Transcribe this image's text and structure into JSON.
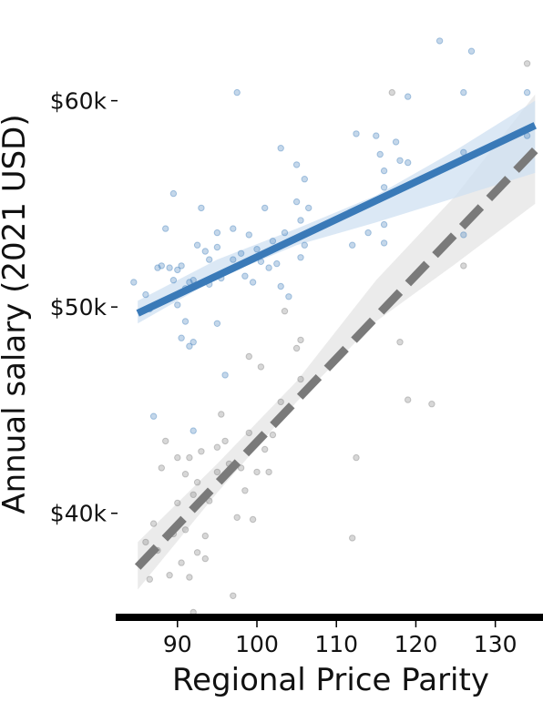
{
  "chart_data": {
    "type": "scatter",
    "title": "",
    "xlabel": "Regional Price Parity",
    "ylabel": "Annual salary (2021 USD)",
    "xlim": [
      82,
      136
    ],
    "ylim": [
      35000,
      64000
    ],
    "x_ticks": [
      90,
      100,
      110,
      120,
      130
    ],
    "x_tick_labels": [
      "90",
      "100",
      "110",
      "120",
      "130"
    ],
    "y_ticks": [
      40000,
      50000,
      60000
    ],
    "y_tick_labels": [
      "$40k",
      "$50k",
      "$60k"
    ],
    "grid": false,
    "legend": "none",
    "series": [
      {
        "color": "#3a7ab8",
        "line_style": "solid",
        "trend_line": {
          "x": [
            85,
            135
          ],
          "y": [
            49700,
            58800
          ]
        },
        "ci_band": {
          "x": [
            85,
            95,
            105,
            115,
            125,
            135
          ],
          "lower": [
            49200,
            51400,
            53000,
            54100,
            55300,
            56500
          ],
          "upper": [
            50300,
            52300,
            53800,
            55400,
            57600,
            60000
          ]
        },
        "points": [
          {
            "x": 84.5,
            "y": 51200
          },
          {
            "x": 86,
            "y": 50600
          },
          {
            "x": 86.5,
            "y": 49900
          },
          {
            "x": 87,
            "y": 44700
          },
          {
            "x": 87.5,
            "y": 51900
          },
          {
            "x": 88,
            "y": 52000
          },
          {
            "x": 88.5,
            "y": 53800
          },
          {
            "x": 89,
            "y": 51900
          },
          {
            "x": 89.5,
            "y": 55500
          },
          {
            "x": 89.5,
            "y": 51300
          },
          {
            "x": 90,
            "y": 50100
          },
          {
            "x": 90,
            "y": 51800
          },
          {
            "x": 90.5,
            "y": 52000
          },
          {
            "x": 90.5,
            "y": 48500
          },
          {
            "x": 91,
            "y": 50900
          },
          {
            "x": 91,
            "y": 49300
          },
          {
            "x": 91.5,
            "y": 51200
          },
          {
            "x": 91.5,
            "y": 48100
          },
          {
            "x": 92,
            "y": 51300
          },
          {
            "x": 92,
            "y": 44000
          },
          {
            "x": 92,
            "y": 48300
          },
          {
            "x": 92.5,
            "y": 53000
          },
          {
            "x": 93,
            "y": 54800
          },
          {
            "x": 93.5,
            "y": 52700
          },
          {
            "x": 94,
            "y": 52300
          },
          {
            "x": 94,
            "y": 51100
          },
          {
            "x": 95,
            "y": 53600
          },
          {
            "x": 95,
            "y": 52900
          },
          {
            "x": 95,
            "y": 49200
          },
          {
            "x": 95.5,
            "y": 51400
          },
          {
            "x": 96,
            "y": 46700
          },
          {
            "x": 96.5,
            "y": 51800
          },
          {
            "x": 97,
            "y": 53800
          },
          {
            "x": 97,
            "y": 52300
          },
          {
            "x": 97.5,
            "y": 60400
          },
          {
            "x": 98,
            "y": 52600
          },
          {
            "x": 98.5,
            "y": 51500
          },
          {
            "x": 99,
            "y": 53500
          },
          {
            "x": 99.5,
            "y": 51200
          },
          {
            "x": 100,
            "y": 52800
          },
          {
            "x": 100.5,
            "y": 52200
          },
          {
            "x": 101,
            "y": 54800
          },
          {
            "x": 101.5,
            "y": 51900
          },
          {
            "x": 102,
            "y": 53200
          },
          {
            "x": 102.5,
            "y": 52100
          },
          {
            "x": 103,
            "y": 57700
          },
          {
            "x": 103,
            "y": 51000
          },
          {
            "x": 103.5,
            "y": 53600
          },
          {
            "x": 104,
            "y": 50500
          },
          {
            "x": 105,
            "y": 56900
          },
          {
            "x": 105,
            "y": 55100
          },
          {
            "x": 105.5,
            "y": 54200
          },
          {
            "x": 105.5,
            "y": 52400
          },
          {
            "x": 106,
            "y": 56200
          },
          {
            "x": 106,
            "y": 53000
          },
          {
            "x": 106.5,
            "y": 54800
          },
          {
            "x": 112,
            "y": 53000
          },
          {
            "x": 112.5,
            "y": 58400
          },
          {
            "x": 114,
            "y": 53600
          },
          {
            "x": 115,
            "y": 58300
          },
          {
            "x": 115.5,
            "y": 57400
          },
          {
            "x": 116,
            "y": 56600
          },
          {
            "x": 116,
            "y": 55800
          },
          {
            "x": 116,
            "y": 54000
          },
          {
            "x": 116,
            "y": 53100
          },
          {
            "x": 117.5,
            "y": 58000
          },
          {
            "x": 118,
            "y": 57100
          },
          {
            "x": 119,
            "y": 57000
          },
          {
            "x": 119,
            "y": 60200
          },
          {
            "x": 123,
            "y": 62900
          },
          {
            "x": 126,
            "y": 60400
          },
          {
            "x": 126,
            "y": 57500
          },
          {
            "x": 126,
            "y": 53500
          },
          {
            "x": 127,
            "y": 62400
          },
          {
            "x": 134,
            "y": 60400
          },
          {
            "x": 134,
            "y": 58300
          }
        ]
      },
      {
        "color": "#7a7a7a",
        "line_style": "dashed",
        "trend_line": {
          "x": [
            85,
            135
          ],
          "y": [
            37400,
            57600
          ]
        },
        "ci_band": {
          "x": [
            85,
            95,
            105,
            115,
            125,
            135
          ],
          "lower": [
            36300,
            41000,
            45400,
            49300,
            52100,
            55000
          ],
          "upper": [
            38600,
            42400,
            46400,
            51300,
            55400,
            60300
          ]
        },
        "points": [
          {
            "x": 86,
            "y": 38600
          },
          {
            "x": 86.5,
            "y": 36800
          },
          {
            "x": 87,
            "y": 39500
          },
          {
            "x": 87.5,
            "y": 38200
          },
          {
            "x": 88,
            "y": 42200
          },
          {
            "x": 88.5,
            "y": 43500
          },
          {
            "x": 89,
            "y": 37000
          },
          {
            "x": 89.5,
            "y": 39000
          },
          {
            "x": 90,
            "y": 42700
          },
          {
            "x": 90,
            "y": 40500
          },
          {
            "x": 90.5,
            "y": 37600
          },
          {
            "x": 91,
            "y": 41900
          },
          {
            "x": 91,
            "y": 39200
          },
          {
            "x": 91.5,
            "y": 42700
          },
          {
            "x": 91.5,
            "y": 36900
          },
          {
            "x": 92,
            "y": 40900
          },
          {
            "x": 92,
            "y": 35200
          },
          {
            "x": 92.5,
            "y": 41500
          },
          {
            "x": 92.5,
            "y": 38100
          },
          {
            "x": 93,
            "y": 43000
          },
          {
            "x": 93.5,
            "y": 38900
          },
          {
            "x": 93.5,
            "y": 37800
          },
          {
            "x": 94,
            "y": 40600
          },
          {
            "x": 95,
            "y": 42000
          },
          {
            "x": 95,
            "y": 43200
          },
          {
            "x": 95.5,
            "y": 44800
          },
          {
            "x": 96,
            "y": 43500
          },
          {
            "x": 96.5,
            "y": 42400
          },
          {
            "x": 97,
            "y": 36000
          },
          {
            "x": 97.5,
            "y": 39800
          },
          {
            "x": 98,
            "y": 42200
          },
          {
            "x": 98.5,
            "y": 41100
          },
          {
            "x": 99,
            "y": 47600
          },
          {
            "x": 99,
            "y": 43900
          },
          {
            "x": 99.5,
            "y": 39700
          },
          {
            "x": 100,
            "y": 42000
          },
          {
            "x": 100.5,
            "y": 47100
          },
          {
            "x": 101,
            "y": 43100
          },
          {
            "x": 101.5,
            "y": 42000
          },
          {
            "x": 102,
            "y": 43800
          },
          {
            "x": 103,
            "y": 45400
          },
          {
            "x": 103.5,
            "y": 49800
          },
          {
            "x": 105,
            "y": 48000
          },
          {
            "x": 105.5,
            "y": 48400
          },
          {
            "x": 105.5,
            "y": 46500
          },
          {
            "x": 112,
            "y": 38800
          },
          {
            "x": 112.5,
            "y": 42700
          },
          {
            "x": 117,
            "y": 60400
          },
          {
            "x": 118,
            "y": 48300
          },
          {
            "x": 119,
            "y": 45500
          },
          {
            "x": 122,
            "y": 45300
          },
          {
            "x": 126,
            "y": 52000
          },
          {
            "x": 134,
            "y": 61800
          }
        ]
      }
    ]
  }
}
